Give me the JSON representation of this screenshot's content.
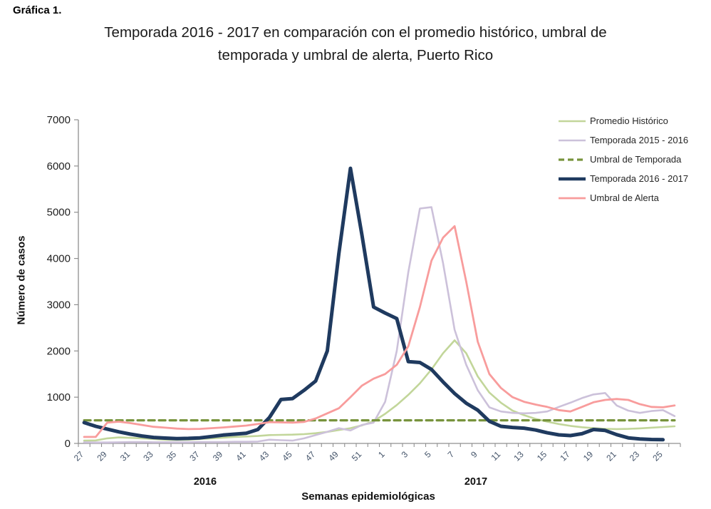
{
  "figure_label": "Gráfica 1.",
  "title_line1": "Temporada 2016 - 2017 en comparación con el promedio histórico, umbral de",
  "title_line2": "temporada y umbral de alerta, Puerto Rico",
  "chart_data": {
    "type": "line",
    "title": "Temporada 2016 - 2017 en comparación con el promedio histórico, umbral de temporada y umbral de alerta, Puerto Rico",
    "xlabel": "Semanas epidemiológicas",
    "ylabel": "Número de casos",
    "ylim": [
      0,
      7000
    ],
    "y_ticks": [
      0,
      1000,
      2000,
      3000,
      4000,
      5000,
      6000,
      7000
    ],
    "grid": false,
    "legend_position": "top-right",
    "year_labels": [
      "2016",
      "2017"
    ],
    "categories": [
      27,
      28,
      29,
      30,
      31,
      32,
      33,
      34,
      35,
      36,
      37,
      38,
      39,
      40,
      41,
      42,
      43,
      44,
      45,
      46,
      47,
      48,
      49,
      50,
      51,
      52,
      1,
      2,
      3,
      4,
      5,
      6,
      7,
      8,
      9,
      10,
      11,
      12,
      13,
      14,
      15,
      16,
      17,
      18,
      19,
      20,
      21,
      22,
      23,
      24,
      25,
      26
    ],
    "labeled_ticks": [
      27,
      29,
      31,
      33,
      35,
      37,
      39,
      41,
      43,
      45,
      47,
      49,
      51,
      1,
      3,
      5,
      7,
      9,
      11,
      13,
      15,
      17,
      19,
      21,
      23,
      25
    ],
    "series": [
      {
        "key": "promedio-historico",
        "name": "Promedio Histórico",
        "color": "#c2d69a",
        "width": 2.6,
        "dash": null,
        "values": [
          60,
          65,
          110,
          130,
          120,
          110,
          95,
          80,
          75,
          80,
          95,
          110,
          125,
          140,
          150,
          160,
          180,
          185,
          190,
          200,
          220,
          250,
          290,
          330,
          390,
          480,
          640,
          830,
          1050,
          1300,
          1600,
          1950,
          2230,
          1950,
          1450,
          1100,
          880,
          710,
          610,
          530,
          470,
          420,
          380,
          350,
          330,
          315,
          310,
          315,
          325,
          340,
          355,
          370
        ]
      },
      {
        "key": "temporada-2015-2016",
        "name": "Temporada 2015 - 2016",
        "color": "#ccc1da",
        "width": 2.6,
        "dash": null,
        "values": [
          25,
          20,
          20,
          25,
          30,
          30,
          25,
          25,
          25,
          25,
          30,
          30,
          30,
          35,
          35,
          40,
          80,
          70,
          60,
          110,
          180,
          250,
          330,
          280,
          400,
          450,
          900,
          2000,
          3700,
          5080,
          5110,
          3900,
          2460,
          1700,
          1150,
          780,
          690,
          660,
          650,
          660,
          690,
          790,
          880,
          980,
          1060,
          1090,
          820,
          710,
          660,
          700,
          720,
          590
        ]
      },
      {
        "key": "umbral-de-temporada",
        "name": "Umbral de Temporada",
        "color": "#77933c",
        "width": 3.2,
        "dash": "9 6",
        "values": [
          500,
          500,
          500,
          500,
          500,
          500,
          500,
          500,
          500,
          500,
          500,
          500,
          500,
          500,
          500,
          500,
          500,
          500,
          500,
          500,
          500,
          500,
          500,
          500,
          500,
          500,
          500,
          500,
          500,
          500,
          500,
          500,
          500,
          500,
          500,
          500,
          500,
          500,
          500,
          500,
          500,
          500,
          500,
          500,
          500,
          500,
          500,
          500,
          500,
          500,
          500,
          500
        ]
      },
      {
        "key": "temporada-2016-2017",
        "name": "Temporada 2016 - 2017",
        "color": "#1f3a5f",
        "width": 5,
        "dash": null,
        "values": [
          450,
          370,
          310,
          250,
          200,
          160,
          130,
          115,
          105,
          110,
          120,
          150,
          180,
          200,
          220,
          300,
          560,
          950,
          970,
          1150,
          1350,
          2000,
          4100,
          5950,
          4500,
          2950,
          2820,
          2700,
          1770,
          1750,
          1600,
          1330,
          1080,
          870,
          720,
          480,
          370,
          345,
          330,
          290,
          230,
          185,
          170,
          210,
          300,
          280,
          190,
          120,
          95,
          85,
          80,
          null
        ]
      },
      {
        "key": "umbral-de-alerta",
        "name": "Umbral de Alerta",
        "color": "#f89c9c",
        "width": 2.8,
        "dash": null,
        "values": [
          140,
          140,
          450,
          470,
          440,
          400,
          360,
          340,
          320,
          310,
          315,
          330,
          345,
          365,
          385,
          420,
          460,
          455,
          450,
          465,
          540,
          650,
          760,
          1000,
          1250,
          1400,
          1500,
          1700,
          2100,
          2950,
          3950,
          4450,
          4700,
          3500,
          2200,
          1500,
          1200,
          1000,
          900,
          840,
          790,
          720,
          690,
          790,
          890,
          940,
          960,
          940,
          850,
          790,
          780,
          820
        ]
      }
    ]
  }
}
